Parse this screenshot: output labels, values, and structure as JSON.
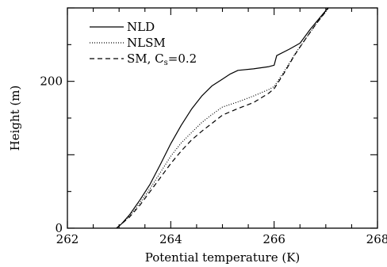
{
  "chart_data": {
    "type": "line",
    "xlabel": "Potential temperature (K)",
    "ylabel": "Height (m)",
    "xlim": [
      262,
      268
    ],
    "ylim": [
      0,
      300
    ],
    "xticks": [
      262,
      264,
      266,
      268
    ],
    "yticks": [
      0,
      200
    ],
    "grid": false,
    "legend_position": "top-left",
    "series": [
      {
        "name": "NLD",
        "style": "solid",
        "points": [
          [
            262.95,
            0
          ],
          [
            263.05,
            6
          ],
          [
            263.2,
            18
          ],
          [
            263.4,
            38
          ],
          [
            263.6,
            60
          ],
          [
            263.8,
            87
          ],
          [
            264.0,
            115
          ],
          [
            264.2,
            140
          ],
          [
            264.4,
            162
          ],
          [
            264.6,
            180
          ],
          [
            264.8,
            194
          ],
          [
            265.0,
            203
          ],
          [
            265.15,
            210
          ],
          [
            265.3,
            215
          ],
          [
            265.6,
            217
          ],
          [
            265.9,
            220
          ],
          [
            266.0,
            222
          ],
          [
            266.05,
            235
          ],
          [
            266.3,
            244
          ],
          [
            266.5,
            252
          ],
          [
            266.7,
            271
          ],
          [
            266.9,
            288
          ],
          [
            267.1,
            305
          ]
        ]
      },
      {
        "name": "NLSM",
        "style": "dotted",
        "points": [
          [
            262.95,
            0
          ],
          [
            263.05,
            6
          ],
          [
            263.2,
            16
          ],
          [
            263.4,
            34
          ],
          [
            263.6,
            54
          ],
          [
            263.8,
            76
          ],
          [
            264.0,
            98
          ],
          [
            264.2,
            116
          ],
          [
            264.4,
            130
          ],
          [
            264.6,
            144
          ],
          [
            264.8,
            155
          ],
          [
            265.0,
            165
          ],
          [
            265.3,
            172
          ],
          [
            265.6,
            180
          ],
          [
            265.9,
            189
          ],
          [
            266.0,
            193
          ],
          [
            266.2,
            214
          ],
          [
            266.4,
            237
          ],
          [
            266.6,
            257
          ],
          [
            266.8,
            277
          ],
          [
            267.0,
            295
          ],
          [
            267.1,
            305
          ]
        ]
      },
      {
        "name": "SM, Cs=0.2",
        "label_main": "SM, C",
        "label_sub": "s",
        "label_tail": "=0.2",
        "style": "dashed",
        "points": [
          [
            262.95,
            0
          ],
          [
            263.05,
            6
          ],
          [
            263.2,
            15
          ],
          [
            263.4,
            31
          ],
          [
            263.6,
            50
          ],
          [
            263.8,
            69
          ],
          [
            264.0,
            88
          ],
          [
            264.2,
            105
          ],
          [
            264.4,
            120
          ],
          [
            264.6,
            132
          ],
          [
            264.8,
            143
          ],
          [
            265.0,
            154
          ],
          [
            265.3,
            163
          ],
          [
            265.6,
            171
          ],
          [
            265.9,
            184
          ],
          [
            266.0,
            190
          ],
          [
            266.2,
            212
          ],
          [
            266.4,
            236
          ],
          [
            266.6,
            257
          ],
          [
            266.8,
            277
          ],
          [
            267.0,
            295
          ],
          [
            267.1,
            305
          ]
        ]
      }
    ]
  }
}
